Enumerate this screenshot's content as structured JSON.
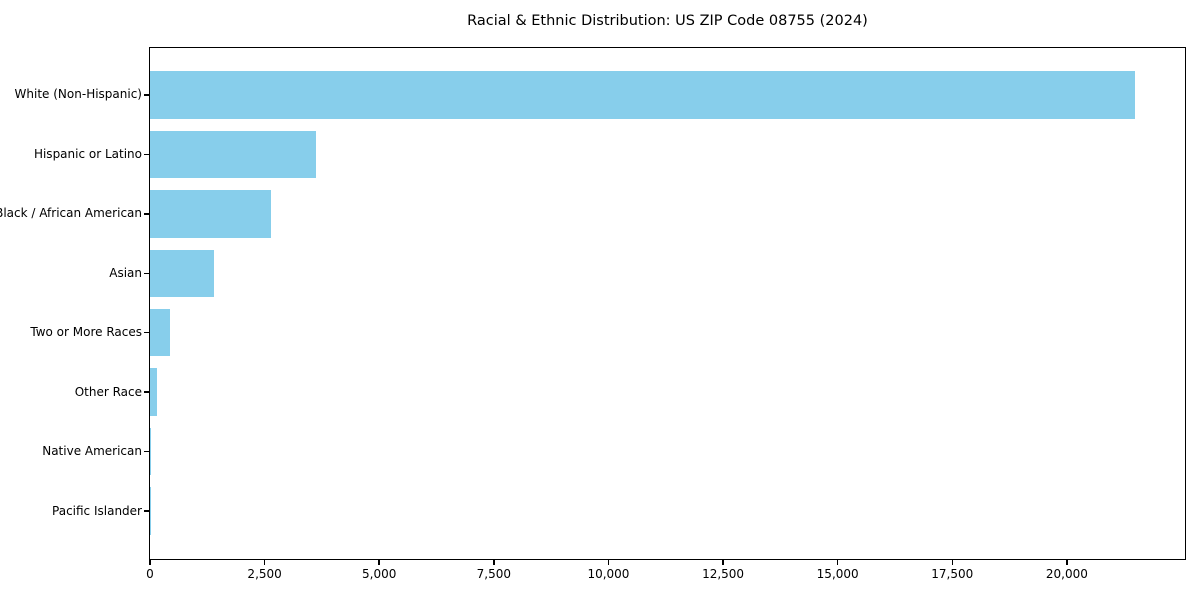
{
  "chart_data": {
    "type": "bar",
    "orientation": "horizontal",
    "title": "Racial & Ethnic Distribution: US ZIP Code 08755 (2024)",
    "categories": [
      "White (Non-Hispanic)",
      "Hispanic or Latino",
      "Black / African American",
      "Asian",
      "Two or More Races",
      "Other Race",
      "Native American",
      "Pacific Islander"
    ],
    "values": [
      21480,
      3630,
      2650,
      1390,
      440,
      150,
      25,
      10
    ],
    "xlabel": "",
    "ylabel": "",
    "xlim": [
      0,
      22554
    ],
    "xticks": {
      "values": [
        0,
        2500,
        5000,
        7500,
        10000,
        12500,
        15000,
        17500,
        20000
      ],
      "labels": [
        "0",
        "2,500",
        "5,000",
        "7,500",
        "10,000",
        "12,500",
        "15,000",
        "17,500",
        "20,000"
      ]
    },
    "grid": false,
    "legend": "none",
    "bar_color": "#87CEEB",
    "axis_color": "#000000",
    "background_color": "#ffffff"
  }
}
